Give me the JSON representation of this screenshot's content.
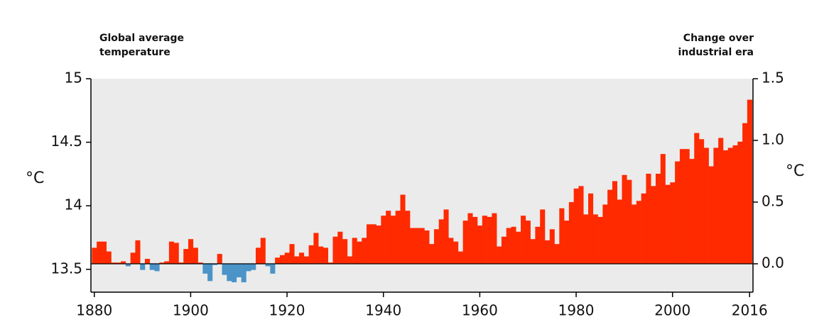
{
  "chart_data": {
    "type": "bar",
    "left_label": [
      "Global average",
      "temperature"
    ],
    "right_label": [
      "Change over",
      "industrial era"
    ],
    "ylabel": "°C",
    "y2label": "°C",
    "xlim": [
      1879.3,
      2016.7
    ],
    "xticks": [
      1880,
      1900,
      1920,
      1940,
      1960,
      1980,
      2000,
      2016
    ],
    "ylim": [
      13.32,
      15.0
    ],
    "yticks": [
      13.5,
      14.0,
      14.5,
      15.0
    ],
    "y2lim": [
      -0.23,
      1.5
    ],
    "y2ticks": [
      {
        "value": 0,
        "label": "0.0"
      },
      0.5,
      {
        "value": 1,
        "label": "1.0"
      },
      1.5
    ],
    "background": "#ebebeb",
    "x": [
      1880,
      1881,
      1882,
      1883,
      1884,
      1885,
      1886,
      1887,
      1888,
      1889,
      1890,
      1891,
      1892,
      1893,
      1894,
      1895,
      1896,
      1897,
      1898,
      1899,
      1900,
      1901,
      1902,
      1903,
      1904,
      1905,
      1906,
      1907,
      1908,
      1909,
      1910,
      1911,
      1912,
      1913,
      1914,
      1915,
      1916,
      1917,
      1918,
      1919,
      1920,
      1921,
      1922,
      1923,
      1924,
      1925,
      1926,
      1927,
      1928,
      1929,
      1930,
      1931,
      1932,
      1933,
      1934,
      1935,
      1936,
      1937,
      1938,
      1939,
      1940,
      1941,
      1942,
      1943,
      1944,
      1945,
      1946,
      1947,
      1948,
      1949,
      1950,
      1951,
      1952,
      1953,
      1954,
      1955,
      1956,
      1957,
      1958,
      1959,
      1960,
      1961,
      1962,
      1963,
      1964,
      1965,
      1966,
      1967,
      1968,
      1969,
      1970,
      1971,
      1972,
      1973,
      1974,
      1975,
      1976,
      1977,
      1978,
      1979,
      1980,
      1981,
      1982,
      1983,
      1984,
      1985,
      1986,
      1987,
      1988,
      1989,
      1990,
      1991,
      1992,
      1993,
      1994,
      1995,
      1996,
      1997,
      1998,
      1999,
      2000,
      2001,
      2002,
      2003,
      2004,
      2005,
      2006,
      2007,
      2008,
      2009,
      2010,
      2011,
      2012,
      2013,
      2014,
      2015,
      2016
    ],
    "series": [
      {
        "axis": "y2",
        "color": "#ff2a00",
        "negative_color": "#4b94c8",
        "values": [
          0.13,
          0.18,
          0.18,
          0.1,
          0.01,
          0.01,
          0.02,
          -0.02,
          0.09,
          0.19,
          -0.05,
          0.04,
          -0.05,
          -0.06,
          0.01,
          0.02,
          0.18,
          0.17,
          0.01,
          0.12,
          0.2,
          0.13,
          0.01,
          -0.08,
          -0.14,
          -0.01,
          0.08,
          -0.09,
          -0.14,
          -0.15,
          -0.11,
          -0.15,
          -0.06,
          -0.05,
          0.13,
          0.21,
          -0.02,
          -0.08,
          0.05,
          0.07,
          0.09,
          0.16,
          0.06,
          0.09,
          0.06,
          0.15,
          0.25,
          0.14,
          0.13,
          0.01,
          0.22,
          0.26,
          0.2,
          0.06,
          0.21,
          0.18,
          0.21,
          0.32,
          0.32,
          0.31,
          0.39,
          0.43,
          0.39,
          0.43,
          0.56,
          0.43,
          0.29,
          0.29,
          0.29,
          0.27,
          0.16,
          0.28,
          0.36,
          0.44,
          0.21,
          0.18,
          0.1,
          0.35,
          0.41,
          0.38,
          0.31,
          0.39,
          0.38,
          0.41,
          0.14,
          0.22,
          0.29,
          0.3,
          0.26,
          0.39,
          0.35,
          0.2,
          0.3,
          0.44,
          0.19,
          0.28,
          0.16,
          0.45,
          0.35,
          0.5,
          0.61,
          0.63,
          0.4,
          0.57,
          0.4,
          0.38,
          0.48,
          0.6,
          0.67,
          0.52,
          0.72,
          0.68,
          0.48,
          0.51,
          0.57,
          0.73,
          0.63,
          0.73,
          0.89,
          0.64,
          0.66,
          0.83,
          0.93,
          0.93,
          0.85,
          1.06,
          1.01,
          0.94,
          0.79,
          0.94,
          1.02,
          0.92,
          0.94,
          0.96,
          0.99,
          1.14,
          1.33
        ]
      }
    ]
  }
}
